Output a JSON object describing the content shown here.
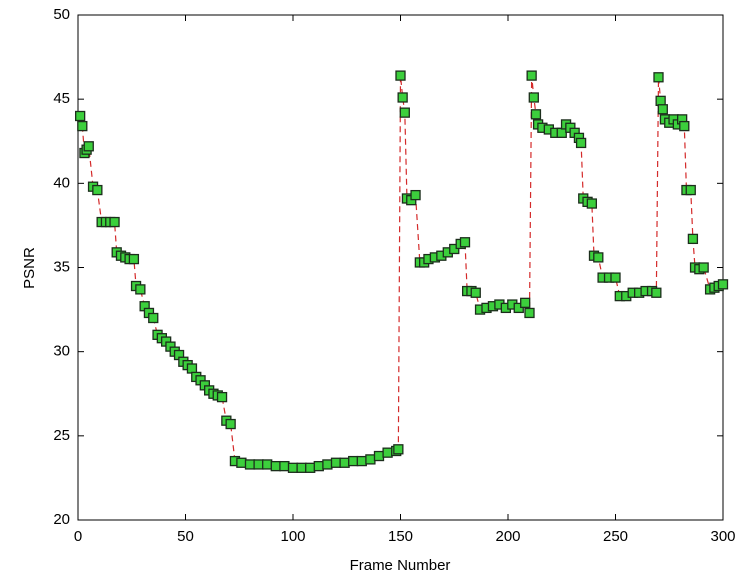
{
  "chart_data": {
    "type": "line",
    "x_label": "Frame Number",
    "y_label": "PSNR",
    "xlim": [
      0,
      300
    ],
    "xticks": [
      0,
      50,
      100,
      150,
      200,
      250,
      300
    ],
    "ylim": [
      20,
      50
    ],
    "yticks": [
      20,
      25,
      30,
      35,
      40,
      45,
      50
    ],
    "grid": false,
    "series": [
      {
        "color": "#d42a2a",
        "marker_color": "#3ccf3c",
        "marker_edge_color": "#1c2e1c",
        "x": [
          1,
          2,
          3,
          4,
          5,
          7,
          9,
          11,
          13,
          15,
          17,
          18,
          20,
          22,
          24,
          26,
          27,
          29,
          31,
          33,
          35,
          37,
          39,
          41,
          43,
          45,
          47,
          49,
          51,
          53,
          55,
          57,
          59,
          61,
          63,
          65,
          67,
          69,
          71,
          73,
          76,
          80,
          84,
          88,
          92,
          96,
          100,
          104,
          108,
          112,
          116,
          120,
          124,
          128,
          132,
          136,
          140,
          144,
          148,
          149,
          150,
          151,
          152,
          153,
          155,
          157,
          159,
          161,
          163,
          166,
          169,
          172,
          175,
          178,
          180,
          181,
          183,
          185,
          187,
          190,
          193,
          196,
          199,
          202,
          205,
          208,
          210,
          211,
          212,
          213,
          214,
          216,
          219,
          222,
          225,
          227,
          229,
          231,
          233,
          234,
          235,
          237,
          239,
          240,
          242,
          244,
          247,
          250,
          252,
          255,
          258,
          261,
          264,
          267,
          269,
          270,
          271,
          272,
          273,
          275,
          277,
          279,
          281,
          282,
          283,
          285,
          286,
          287,
          289,
          291,
          294,
          296,
          298,
          300
        ],
        "values": [
          44.0,
          43.4,
          41.8,
          42.0,
          42.2,
          39.8,
          39.6,
          37.7,
          37.7,
          37.7,
          37.7,
          35.9,
          35.7,
          35.6,
          35.5,
          35.5,
          33.9,
          33.7,
          32.7,
          32.3,
          32.0,
          31.0,
          30.8,
          30.6,
          30.3,
          30.0,
          29.8,
          29.4,
          29.2,
          29.0,
          28.5,
          28.3,
          28.0,
          27.7,
          27.5,
          27.4,
          27.3,
          25.9,
          25.7,
          23.5,
          23.4,
          23.3,
          23.3,
          23.3,
          23.2,
          23.2,
          23.1,
          23.1,
          23.1,
          23.2,
          23.3,
          23.4,
          23.4,
          23.5,
          23.5,
          23.6,
          23.8,
          24.0,
          24.1,
          24.2,
          46.4,
          45.1,
          44.2,
          39.1,
          39.0,
          39.3,
          35.3,
          35.3,
          35.5,
          35.6,
          35.7,
          35.9,
          36.1,
          36.4,
          36.5,
          33.6,
          33.6,
          33.5,
          32.5,
          32.6,
          32.7,
          32.8,
          32.6,
          32.8,
          32.6,
          32.9,
          32.3,
          46.4,
          45.1,
          44.1,
          43.5,
          43.3,
          43.2,
          43.0,
          43.0,
          43.5,
          43.3,
          43.0,
          42.7,
          42.4,
          39.1,
          38.9,
          38.8,
          35.7,
          35.6,
          34.4,
          34.4,
          34.4,
          33.3,
          33.3,
          33.5,
          33.5,
          33.6,
          33.6,
          33.5,
          46.3,
          44.9,
          44.4,
          43.8,
          43.6,
          43.8,
          43.5,
          43.8,
          43.4,
          39.6,
          39.6,
          36.7,
          35.0,
          34.9,
          35.0,
          33.7,
          33.8,
          33.9,
          34.0
        ]
      }
    ]
  }
}
